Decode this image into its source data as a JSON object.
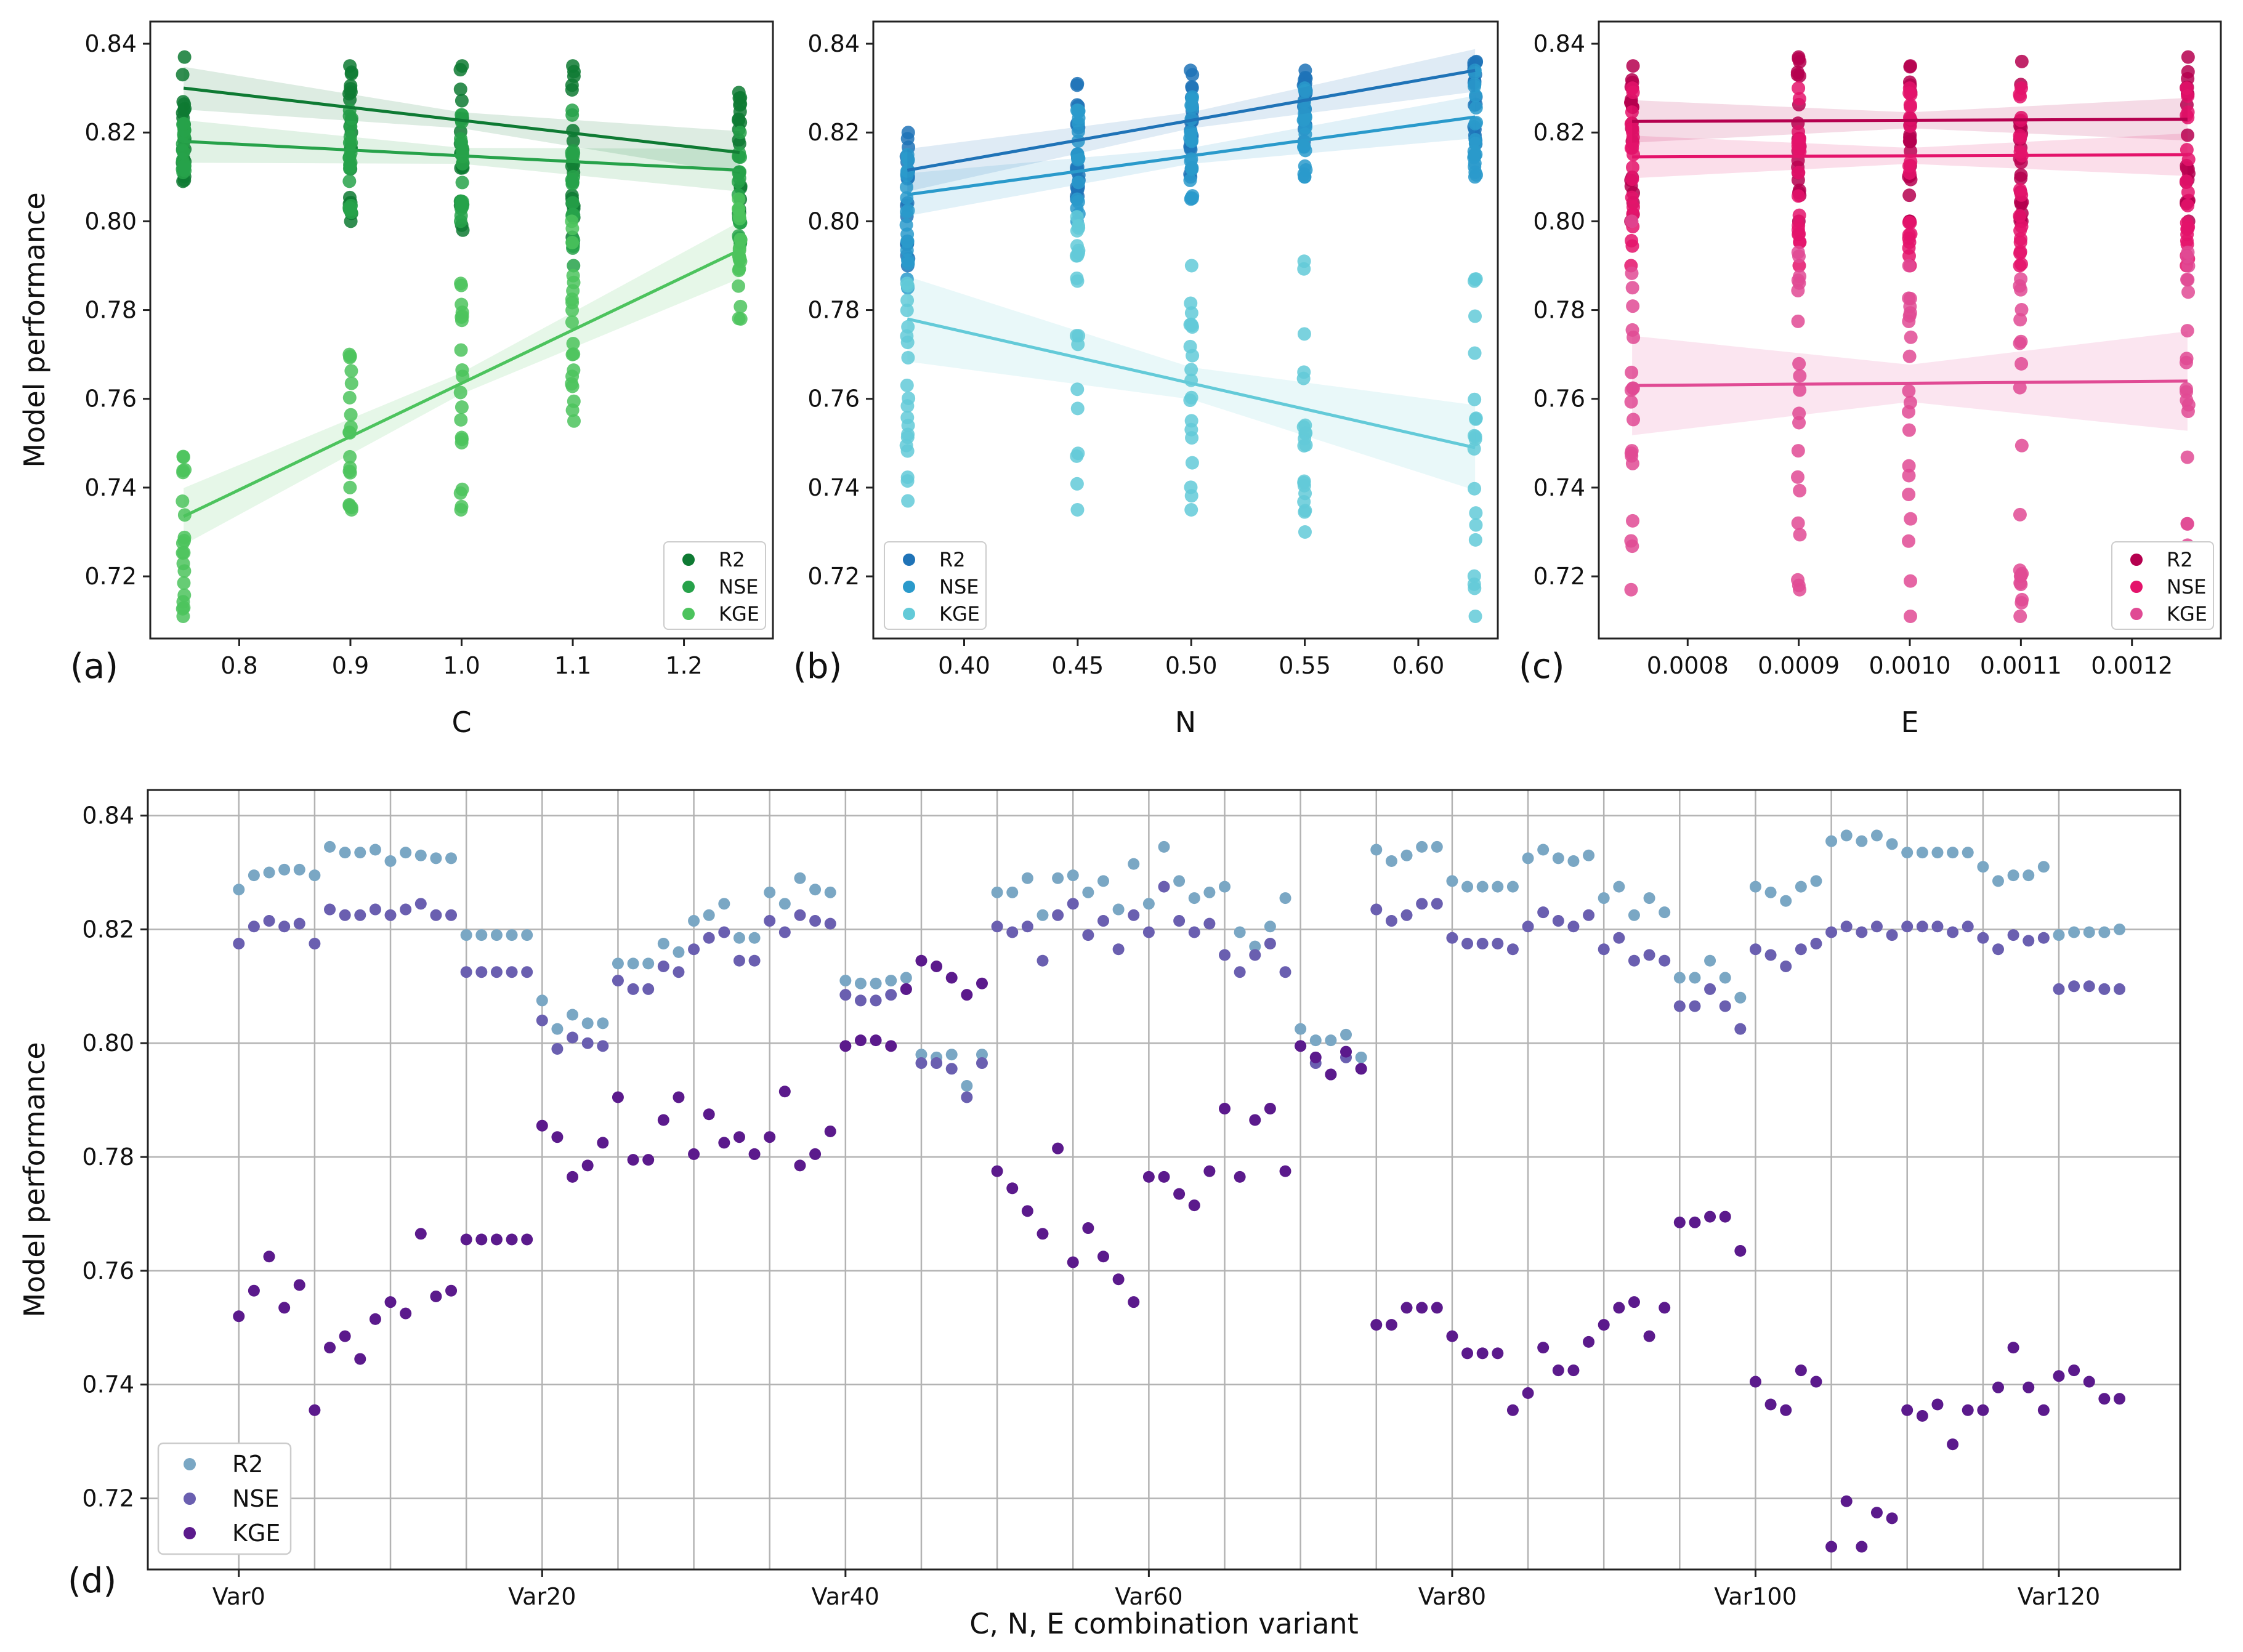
{
  "chart_data": [
    {
      "type": "scatter",
      "panel_label": "(a)",
      "xlabel": "C",
      "ylabel": "Model performance",
      "xlim": [
        0.72,
        1.28
      ],
      "ylim": [
        0.706,
        0.845
      ],
      "xticks": [
        0.8,
        0.9,
        1.0,
        1.1,
        1.2
      ],
      "xtick_labels": [
        "0.8",
        "0.9",
        "1.0",
        "1.1",
        "1.2"
      ],
      "yticks": [
        0.72,
        0.74,
        0.76,
        0.78,
        0.8,
        0.82,
        0.84
      ],
      "ytick_labels": [
        "0.72",
        "0.74",
        "0.76",
        "0.78",
        "0.80",
        "0.82",
        "0.84"
      ],
      "x_levels": [
        0.75,
        0.9,
        1.0,
        1.1,
        1.25
      ],
      "legend_position": "lower-right",
      "series": [
        {
          "name": "R2",
          "color": "#0e7a33",
          "ranges": [
            [
              0.809,
              0.837
            ],
            [
              0.8,
              0.835
            ],
            [
              0.798,
              0.835
            ],
            [
              0.795,
              0.835
            ],
            [
              0.8,
              0.829
            ]
          ],
          "fit": [
            [
              0.75,
              0.83
            ],
            [
              1.25,
              0.8155
            ]
          ],
          "band": 0.003
        },
        {
          "name": "NSE",
          "color": "#27a24a",
          "ranges": [
            [
              0.811,
              0.822
            ],
            [
              0.802,
              0.825
            ],
            [
              0.8,
              0.824
            ],
            [
              0.79,
              0.825
            ],
            [
              0.795,
              0.82
            ]
          ],
          "fit": [
            [
              0.75,
              0.818
            ],
            [
              1.25,
              0.8115
            ]
          ],
          "band": 0.003
        },
        {
          "name": "KGE",
          "color": "#4cc35d",
          "ranges": [
            [
              0.711,
              0.747
            ],
            [
              0.735,
              0.77
            ],
            [
              0.735,
              0.786
            ],
            [
              0.755,
              0.8
            ],
            [
              0.778,
              0.805
            ]
          ],
          "fit": [
            [
              0.75,
              0.7335
            ],
            [
              1.25,
              0.7935
            ]
          ],
          "band": 0.004
        }
      ]
    },
    {
      "type": "scatter",
      "panel_label": "(b)",
      "xlabel": "N",
      "xlim": [
        0.36,
        0.635
      ],
      "ylim": [
        0.706,
        0.845
      ],
      "xticks": [
        0.4,
        0.45,
        0.5,
        0.55,
        0.6
      ],
      "xtick_labels": [
        "0.40",
        "0.45",
        "0.50",
        "0.55",
        "0.60"
      ],
      "yticks": [
        0.72,
        0.74,
        0.76,
        0.78,
        0.8,
        0.82,
        0.84
      ],
      "ytick_labels": [
        "0.72",
        "0.74",
        "0.76",
        "0.78",
        "0.80",
        "0.82",
        "0.84"
      ],
      "x_levels": [
        0.375,
        0.45,
        0.5,
        0.55,
        0.625
      ],
      "legend_position": "lower-left",
      "series": [
        {
          "name": "R2",
          "color": "#1f73b7",
          "ranges": [
            [
              0.79,
              0.82
            ],
            [
              0.805,
              0.831
            ],
            [
              0.81,
              0.834
            ],
            [
              0.818,
              0.834
            ],
            [
              0.815,
              0.836
            ]
          ],
          "fit": [
            [
              0.375,
              0.8115
            ],
            [
              0.625,
              0.834
            ]
          ],
          "band": 0.003
        },
        {
          "name": "NSE",
          "color": "#2a9acb",
          "ranges": [
            [
              0.785,
              0.815
            ],
            [
              0.8,
              0.825
            ],
            [
              0.805,
              0.828
            ],
            [
              0.81,
              0.83
            ],
            [
              0.81,
              0.834
            ]
          ],
          "fit": [
            [
              0.375,
              0.806
            ],
            [
              0.625,
              0.8235
            ]
          ],
          "band": 0.003
        },
        {
          "name": "KGE",
          "color": "#63cad8",
          "ranges": [
            [
              0.737,
              0.786
            ],
            [
              0.735,
              0.801
            ],
            [
              0.735,
              0.79
            ],
            [
              0.73,
              0.791
            ],
            [
              0.711,
              0.787
            ]
          ],
          "fit": [
            [
              0.375,
              0.778
            ],
            [
              0.625,
              0.749
            ]
          ],
          "band": 0.006
        }
      ]
    },
    {
      "type": "scatter",
      "panel_label": "(c)",
      "xlabel": "E",
      "xlim": [
        0.00072,
        0.00128
      ],
      "ylim": [
        0.706,
        0.845
      ],
      "xticks": [
        0.0008,
        0.0009,
        0.001,
        0.0011,
        0.0012
      ],
      "xtick_labels": [
        "0.0008",
        "0.0009",
        "0.0010",
        "0.0011",
        "0.0012"
      ],
      "yticks": [
        0.72,
        0.74,
        0.76,
        0.78,
        0.8,
        0.82,
        0.84
      ],
      "ytick_labels": [
        "0.72",
        "0.74",
        "0.76",
        "0.78",
        "0.80",
        "0.82",
        "0.84"
      ],
      "x_levels": [
        0.00075,
        0.0009,
        0.001,
        0.0011,
        0.00125
      ],
      "legend_position": "lower-right",
      "series": [
        {
          "name": "R2",
          "color": "#b5004f",
          "ranges": [
            [
              0.8,
              0.835
            ],
            [
              0.8,
              0.837
            ],
            [
              0.8,
              0.835
            ],
            [
              0.8,
              0.836
            ],
            [
              0.8,
              0.837
            ]
          ],
          "fit": [
            [
              0.00075,
              0.8225
            ],
            [
              0.00125,
              0.823
            ]
          ],
          "band": 0.003
        },
        {
          "name": "NSE",
          "color": "#e4136b",
          "ranges": [
            [
              0.79,
              0.83
            ],
            [
              0.79,
              0.83
            ],
            [
              0.79,
              0.83
            ],
            [
              0.79,
              0.83
            ],
            [
              0.79,
              0.83
            ]
          ],
          "fit": [
            [
              0.00075,
              0.8145
            ],
            [
              0.00125,
              0.815
            ]
          ],
          "band": 0.003
        },
        {
          "name": "KGE",
          "color": "#e04a94",
          "ranges": [
            [
              0.717,
              0.8
            ],
            [
              0.717,
              0.793
            ],
            [
              0.711,
              0.79
            ],
            [
              0.711,
              0.787
            ],
            [
              0.72,
              0.793
            ]
          ],
          "fit": [
            [
              0.00075,
              0.763
            ],
            [
              0.00125,
              0.764
            ]
          ],
          "band": 0.007
        }
      ]
    },
    {
      "type": "scatter",
      "panel_label": "(d)",
      "xlabel": "C, N, E combination variant",
      "ylabel": "Model performance",
      "xlim": [
        -6,
        128
      ],
      "ylim": [
        0.7075,
        0.8445
      ],
      "xticks": [
        0,
        20,
        40,
        60,
        80,
        100,
        120
      ],
      "xtick_labels": [
        "Var0",
        "Var20",
        "Var40",
        "Var60",
        "Var80",
        "Var100",
        "Var120"
      ],
      "yticks": [
        0.72,
        0.74,
        0.76,
        0.78,
        0.8,
        0.82,
        0.84
      ],
      "ytick_labels": [
        "0.72",
        "0.74",
        "0.76",
        "0.78",
        "0.80",
        "0.82",
        "0.84"
      ],
      "legend_position": "lower-left",
      "series": [
        {
          "name": "R2",
          "color": "#7aa7c4",
          "values": [
            0.827,
            0.8295,
            0.83,
            0.8305,
            0.8305,
            0.8295,
            0.8345,
            0.8335,
            0.8335,
            0.834,
            0.832,
            0.8335,
            0.833,
            0.8325,
            0.8325,
            0.819,
            0.819,
            0.819,
            0.819,
            0.819,
            0.8075,
            0.8025,
            0.805,
            0.8035,
            0.8035,
            0.814,
            0.814,
            0.814,
            0.8175,
            0.816,
            0.8215,
            0.8225,
            0.8245,
            0.8185,
            0.8185,
            0.8265,
            0.8245,
            0.829,
            0.827,
            0.8265,
            0.811,
            0.8105,
            0.8105,
            0.811,
            0.8115,
            0.798,
            0.7975,
            0.798,
            0.7925,
            0.798,
            0.8265,
            0.8265,
            0.829,
            0.8225,
            0.829,
            0.8295,
            0.8265,
            0.8285,
            0.8235,
            0.8315,
            0.8245,
            0.8345,
            0.8285,
            0.8255,
            0.8265,
            0.8275,
            0.8195,
            0.817,
            0.8205,
            0.8255,
            0.8025,
            0.8005,
            0.8005,
            0.8015,
            0.7975,
            0.834,
            0.832,
            0.833,
            0.8345,
            0.8345,
            0.8285,
            0.8275,
            0.8275,
            0.8275,
            0.8275,
            0.8325,
            0.834,
            0.8325,
            0.832,
            0.833,
            0.8255,
            0.8275,
            0.8225,
            0.8255,
            0.823,
            0.8115,
            0.8115,
            0.8145,
            0.8115,
            0.808,
            0.8275,
            0.8265,
            0.825,
            0.8275,
            0.8285,
            0.8355,
            0.8365,
            0.8355,
            0.8365,
            0.835,
            0.8335,
            0.8335,
            0.8335,
            0.8335,
            0.8335,
            0.831,
            0.8285,
            0.8295,
            0.8295,
            0.831,
            0.819,
            0.8195,
            0.8195,
            0.8195,
            0.82
          ]
        },
        {
          "name": "NSE",
          "color": "#6a5fb0",
          "values": [
            0.8175,
            0.8205,
            0.8215,
            0.8205,
            0.821,
            0.8175,
            0.8235,
            0.8225,
            0.8225,
            0.8235,
            0.8225,
            0.8235,
            0.8245,
            0.8225,
            0.8225,
            0.8125,
            0.8125,
            0.8125,
            0.8125,
            0.8125,
            0.804,
            0.799,
            0.801,
            0.8,
            0.7995,
            0.811,
            0.8095,
            0.8095,
            0.8135,
            0.8125,
            0.8165,
            0.8185,
            0.8195,
            0.8145,
            0.8145,
            0.8215,
            0.8195,
            0.8225,
            0.8215,
            0.821,
            0.8085,
            0.8075,
            0.8075,
            0.8085,
            0.8095,
            0.7965,
            0.7965,
            0.7955,
            0.7905,
            0.7965,
            0.8205,
            0.8195,
            0.8205,
            0.8145,
            0.8225,
            0.8245,
            0.819,
            0.8215,
            0.8165,
            0.8225,
            0.8195,
            0.8275,
            0.8215,
            0.8195,
            0.821,
            0.8155,
            0.8125,
            0.8155,
            0.8175,
            0.8125,
            0.7995,
            0.7965,
            0.7945,
            0.7975,
            0.7955,
            0.8235,
            0.8215,
            0.8225,
            0.8245,
            0.8245,
            0.8185,
            0.8175,
            0.8175,
            0.8175,
            0.8165,
            0.8205,
            0.823,
            0.8215,
            0.8205,
            0.8225,
            0.8165,
            0.8185,
            0.8145,
            0.8155,
            0.8145,
            0.8065,
            0.8065,
            0.8095,
            0.8065,
            0.8025,
            0.8165,
            0.8155,
            0.8135,
            0.8165,
            0.8175,
            0.8195,
            0.8205,
            0.8195,
            0.8205,
            0.819,
            0.8205,
            0.8205,
            0.8205,
            0.8195,
            0.8205,
            0.8185,
            0.8165,
            0.819,
            0.818,
            0.8185,
            0.8095,
            0.81,
            0.81,
            0.8095,
            0.8095
          ]
        },
        {
          "name": "KGE",
          "color": "#5b1a8c",
          "values": [
            0.752,
            0.7565,
            0.7625,
            0.7535,
            0.7575,
            0.7355,
            0.7465,
            0.7485,
            0.7445,
            0.7515,
            0.7545,
            0.7525,
            0.7665,
            0.7555,
            0.7565,
            0.7655,
            0.7655,
            0.7655,
            0.7655,
            0.7655,
            0.7855,
            0.7835,
            0.7765,
            0.7785,
            0.7825,
            0.7905,
            0.7795,
            0.7795,
            0.7865,
            0.7905,
            0.7805,
            0.7875,
            0.7825,
            0.7835,
            0.7805,
            0.7835,
            0.7915,
            0.7785,
            0.7805,
            0.7845,
            0.7995,
            0.8005,
            0.8005,
            0.7995,
            0.8095,
            0.8145,
            0.8135,
            0.8115,
            0.8085,
            0.8105,
            0.7775,
            0.7745,
            0.7705,
            0.7665,
            0.7815,
            0.7615,
            0.7675,
            0.7625,
            0.7585,
            0.7545,
            0.7765,
            0.7765,
            0.7735,
            0.7715,
            0.7775,
            0.7885,
            0.7765,
            0.7865,
            0.7885,
            0.7775,
            0.7995,
            0.7975,
            0.7945,
            0.7985,
            0.7955,
            0.7505,
            0.7505,
            0.7535,
            0.7535,
            0.7535,
            0.7485,
            0.7455,
            0.7455,
            0.7455,
            0.7355,
            0.7385,
            0.7465,
            0.7425,
            0.7425,
            0.7475,
            0.7505,
            0.7535,
            0.7545,
            0.7485,
            0.7535,
            0.7685,
            0.7685,
            0.7695,
            0.7695,
            0.7635,
            0.7405,
            0.7365,
            0.7355,
            0.7425,
            0.7405,
            0.7115,
            0.7195,
            0.7115,
            0.7175,
            0.7165,
            0.7355,
            0.7345,
            0.7365,
            0.7295,
            0.7355,
            0.7355,
            0.7395,
            0.7465,
            0.7395,
            0.7355,
            0.7415,
            0.7425,
            0.7405,
            0.7375,
            0.7375
          ]
        }
      ]
    }
  ]
}
